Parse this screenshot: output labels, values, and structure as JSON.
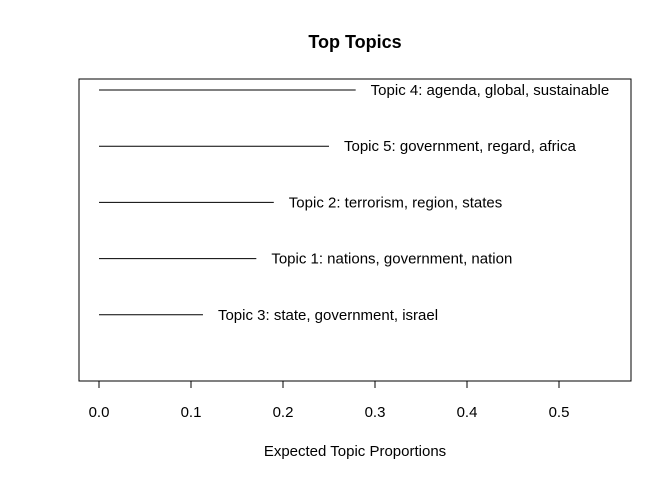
{
  "chart_data": {
    "type": "bar",
    "title": "Top Topics",
    "xlabel": "Expected Topic Proportions",
    "ylabel": "",
    "xlim": [
      -0.022,
      0.58
    ],
    "xticks": [
      "0.0",
      "0.1",
      "0.2",
      "0.3",
      "0.4",
      "0.5"
    ],
    "grid": false,
    "orientation": "horizontal",
    "categories": [
      "Topic 4: agenda, global, sustainable",
      "Topic 5: government, regard, africa",
      "Topic 2: terrorism, region, states",
      "Topic 1: nations, government, nation",
      "Topic 3: state, government, israel"
    ],
    "values": [
      0.279,
      0.25,
      0.19,
      0.171,
      0.113
    ]
  }
}
